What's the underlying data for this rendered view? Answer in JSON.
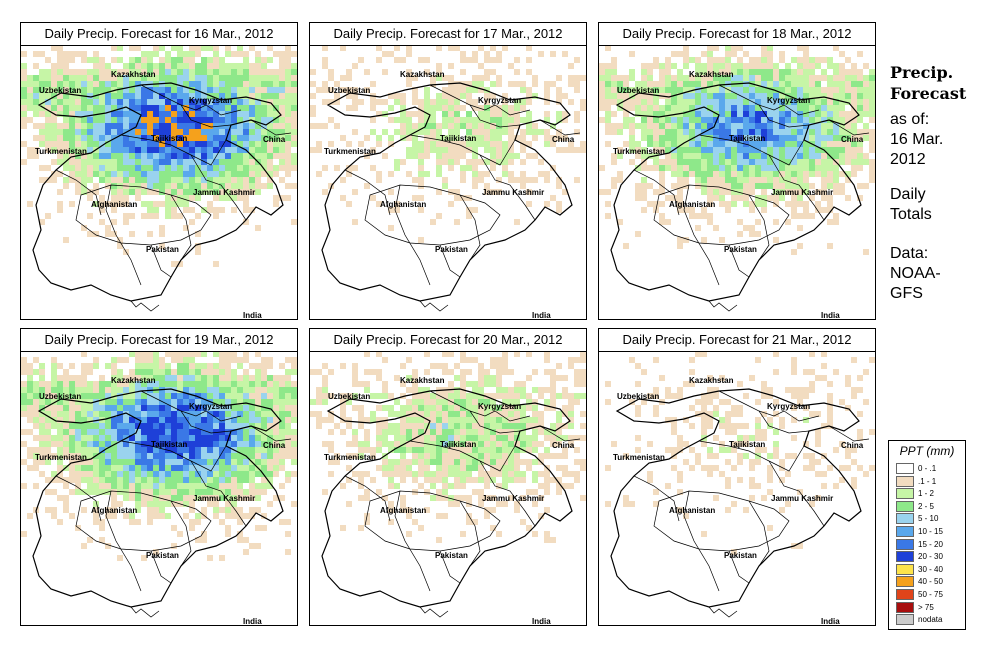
{
  "panels": [
    {
      "title": "Daily Precip. Forecast for  16 Mar., 2012",
      "intensity": 1.0
    },
    {
      "title": "Daily Precip. Forecast for  17 Mar., 2012",
      "intensity": 0.35
    },
    {
      "title": "Daily Precip. Forecast for  18 Mar., 2012",
      "intensity": 0.8
    },
    {
      "title": "Daily Precip. Forecast for  19 Mar., 2012",
      "intensity": 0.95
    },
    {
      "title": "Daily Precip. Forecast for  20 Mar., 2012",
      "intensity": 0.45
    },
    {
      "title": "Daily Precip. Forecast for  21 Mar., 2012",
      "intensity": 0.2
    }
  ],
  "map_labels": {
    "kazakhstan": "Kazakhstan",
    "uzbekistan": "Uzbekistan",
    "kyrgyzstan": "Kyrgyzstan",
    "tajikistan": "Tajikistan",
    "china": "China",
    "turkmenistan": "Turkmenistan",
    "afghanistan": "Afghanistan",
    "jammu_kashmir": "Jammu Kashmir",
    "pakistan": "Pakistan",
    "india": "India"
  },
  "side": {
    "title_line1": "Precip.",
    "title_line2": "Forecast",
    "asof_line1": "as of:",
    "asof_line2": "16 Mar.",
    "asof_line3": "2012",
    "daily_line1": "Daily",
    "daily_line2": "Totals",
    "data_line1": "Data:",
    "data_line2": "NOAA-",
    "data_line3": "GFS"
  },
  "legend": {
    "title": "PPT (mm)",
    "items": [
      {
        "label": "0 - .1",
        "color": "#ffffff"
      },
      {
        "label": ".1 - 1",
        "color": "#f2dcc0"
      },
      {
        "label": "1 - 2",
        "color": "#c6f5a6"
      },
      {
        "label": "2 - 5",
        "color": "#8ee88a"
      },
      {
        "label": "5 - 10",
        "color": "#9ad3ee"
      },
      {
        "label": "10 - 15",
        "color": "#5aa8ec"
      },
      {
        "label": "15 - 20",
        "color": "#3a78e6"
      },
      {
        "label": "20 - 30",
        "color": "#1e40d8"
      },
      {
        "label": "30 - 40",
        "color": "#fde34a"
      },
      {
        "label": "40 - 50",
        "color": "#f5a11c"
      },
      {
        "label": "50 - 75",
        "color": "#e0441a"
      },
      {
        "label": "> 75",
        "color": "#a80e0e"
      },
      {
        "label": "nodata",
        "color": "#cccccc"
      }
    ]
  }
}
